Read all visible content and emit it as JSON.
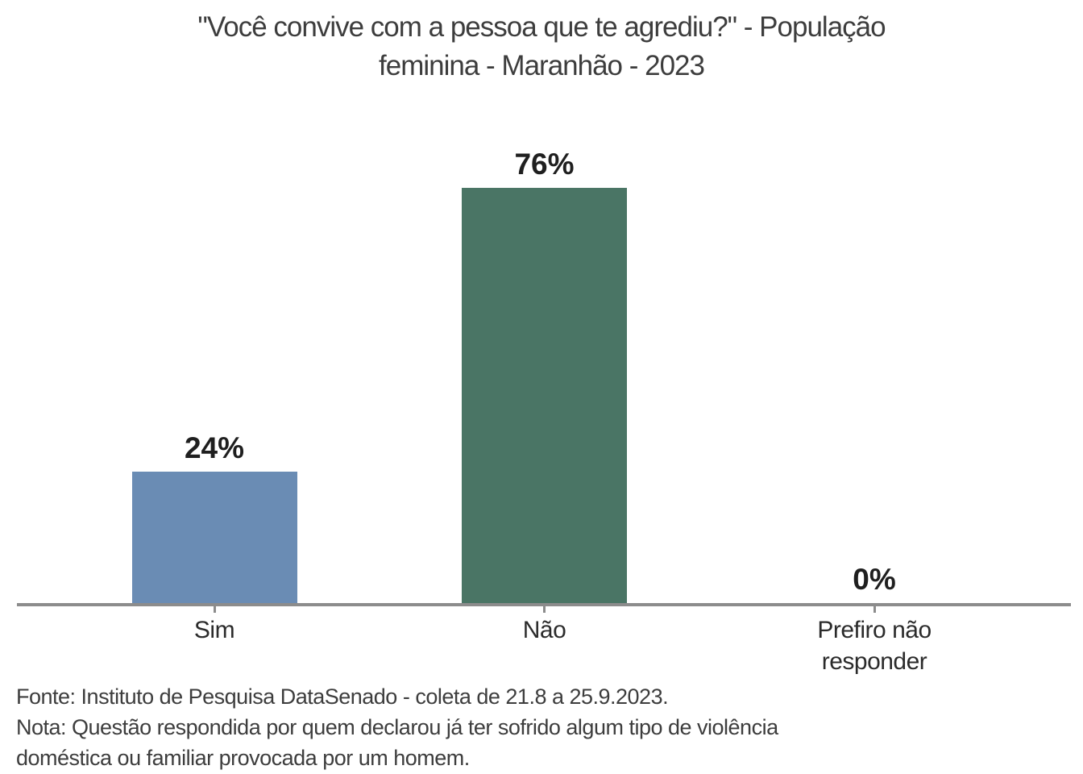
{
  "chart_data": {
    "type": "bar",
    "title": "\"Você convive com a pessoa que te agrediu?\" - População feminina - Maranhão - 2023",
    "title_lines": [
      "\"Você convive com a pessoa que te agrediu?\" - População",
      "feminina - Maranhão - 2023"
    ],
    "categories": [
      "Sim",
      "Não",
      "Prefiro não responder"
    ],
    "values": [
      24,
      76,
      0
    ],
    "value_labels": [
      "24%",
      "76%",
      "0%"
    ],
    "bar_colors": [
      "#6a8cb4",
      "#4a7565",
      "#a0a0a0"
    ],
    "xlabel": "",
    "ylabel": "",
    "ylim": [
      0,
      100
    ],
    "grid": false,
    "legend": "none",
    "annotations": [
      "Fonte: Instituto de Pesquisa DataSenado - coleta de 21.8 a 25.9.2023.",
      "Nota: Questão respondida por quem declarou já ter sofrido algum tipo de violência doméstica ou familiar provocada por um homem."
    ]
  },
  "footer": {
    "lines": [
      "Fonte: Instituto de Pesquisa DataSenado - coleta de 21.8 a 25.9.2023.",
      "Nota: Questão respondida por quem declarou já ter sofrido algum tipo de violência",
      "doméstica ou familiar provocada por um homem."
    ]
  },
  "colors": {
    "background": "#ffffff",
    "title_text": "#3d3d3d",
    "value_label_text": "#1f1f1f",
    "category_label_text": "#2b2b2b",
    "footer_text": "#3d3d3d",
    "axis_line": "#8c8c8c",
    "bar_sim": "#6a8cb4",
    "bar_nao": "#4a7565"
  }
}
